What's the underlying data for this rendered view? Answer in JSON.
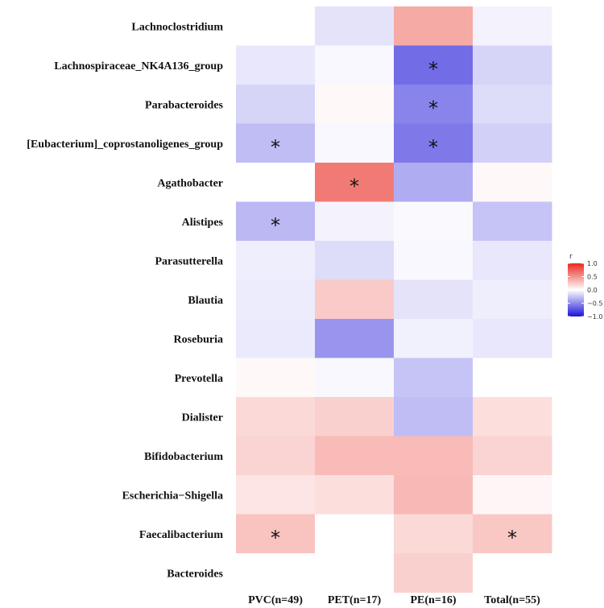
{
  "chart_data": {
    "type": "heatmap",
    "rows": [
      "Lachnoclostridium",
      "Lachnospiraceae_NK4A136_group",
      "Parabacteroides",
      "[Eubacterium]_coprostanoligenes_group",
      "Agathobacter",
      "Alistipes",
      "Parasutterella",
      "Blautia",
      "Roseburia",
      "Prevotella",
      "Dialister",
      "Bifidobacterium",
      "Escherichia−Shigella",
      "Faecalibacterium",
      "Bacteroides"
    ],
    "columns": [
      "PVC(n=49)",
      "PET(n=17)",
      "PE(n=16)",
      "Total(n=55)"
    ],
    "values": [
      [
        0.0,
        -0.12,
        0.4,
        -0.05
      ],
      [
        -0.1,
        -0.03,
        -0.62,
        -0.18
      ],
      [
        -0.18,
        0.03,
        -0.52,
        -0.15
      ],
      [
        -0.28,
        -0.03,
        -0.57,
        -0.2
      ],
      [
        0.0,
        0.62,
        -0.35,
        0.03
      ],
      [
        -0.3,
        -0.05,
        -0.02,
        -0.25
      ],
      [
        -0.07,
        -0.15,
        -0.03,
        -0.1
      ],
      [
        -0.08,
        0.25,
        -0.12,
        -0.07
      ],
      [
        -0.09,
        -0.45,
        -0.06,
        -0.1
      ],
      [
        0.03,
        -0.03,
        -0.25,
        0.0
      ],
      [
        0.18,
        0.22,
        -0.28,
        0.15
      ],
      [
        0.2,
        0.32,
        0.32,
        0.2
      ],
      [
        0.12,
        0.15,
        0.33,
        0.04
      ],
      [
        0.28,
        0.0,
        0.18,
        0.26
      ],
      [
        0.0,
        0.0,
        0.22,
        0.0
      ]
    ],
    "significance": [
      [
        false,
        false,
        false,
        false
      ],
      [
        false,
        false,
        true,
        false
      ],
      [
        false,
        false,
        true,
        false
      ],
      [
        true,
        false,
        true,
        false
      ],
      [
        false,
        true,
        false,
        false
      ],
      [
        true,
        false,
        false,
        false
      ],
      [
        false,
        false,
        false,
        false
      ],
      [
        false,
        false,
        false,
        false
      ],
      [
        false,
        false,
        false,
        false
      ],
      [
        false,
        false,
        false,
        false
      ],
      [
        false,
        false,
        false,
        false
      ],
      [
        false,
        false,
        false,
        false
      ],
      [
        false,
        false,
        false,
        false
      ],
      [
        true,
        false,
        false,
        true
      ],
      [
        false,
        false,
        false,
        false
      ]
    ],
    "significance_marker": "*",
    "legend": {
      "title": "r",
      "range": [
        -1.0,
        1.0
      ],
      "ticks": [
        1.0,
        0.5,
        0.0,
        -0.5,
        -1.0
      ],
      "tick_labels": [
        "1.0",
        "0.5",
        "0.0",
        "−0.5",
        "−1.0"
      ],
      "placement": "right"
    },
    "colors": {
      "negative": "#1c13d9",
      "mid": "#ffffff",
      "positive": "#e82a1f"
    }
  }
}
